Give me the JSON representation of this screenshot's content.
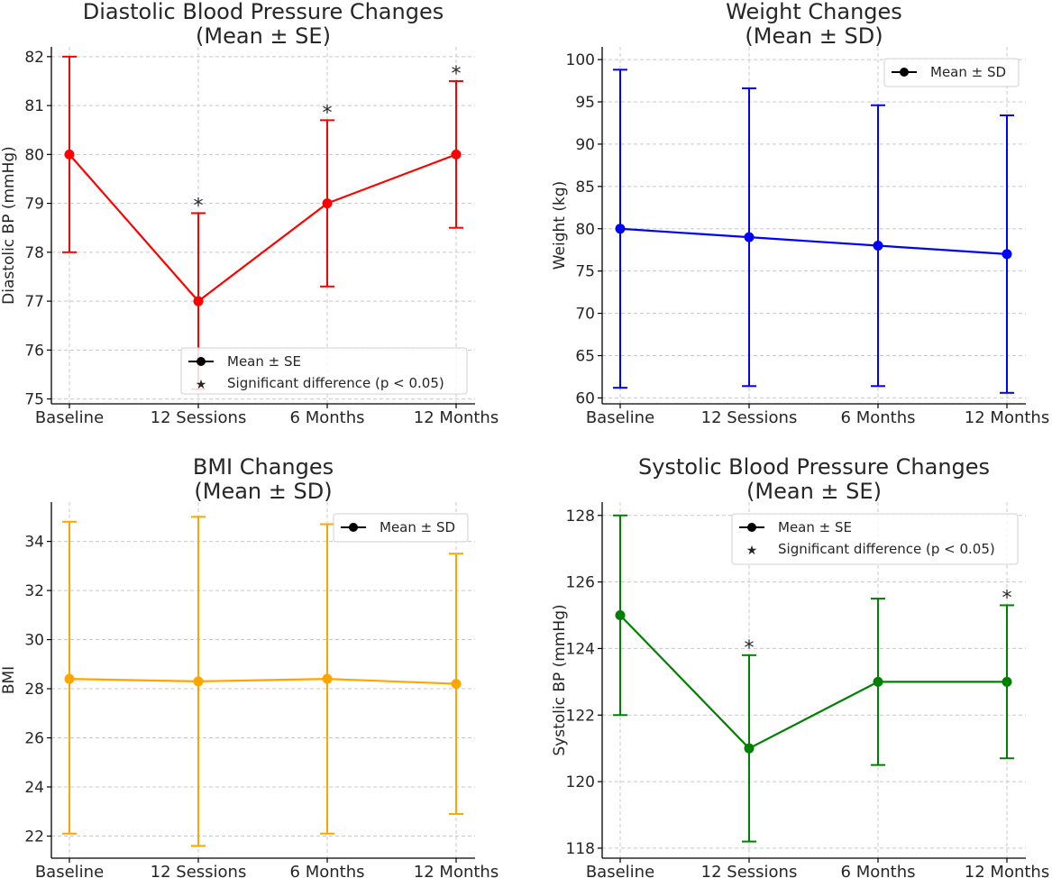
{
  "chart_data": [
    {
      "type": "line",
      "title": "Diastolic Blood Pressure Changes",
      "subtitle": "(Mean ± SE)",
      "xlabel": "",
      "ylabel": "Diastolic BP (mmHg)",
      "categories": [
        "Baseline",
        "12 Sessions",
        "6 Months",
        "12 Months"
      ],
      "ylim": [
        74.9,
        82.2
      ],
      "yticks": [
        75,
        76,
        77,
        78,
        79,
        80,
        81,
        82
      ],
      "color": "#ff0000",
      "series": [
        {
          "values": [
            80,
            77,
            79,
            80
          ],
          "err_low": [
            78,
            75.2,
            77.3,
            78.5
          ],
          "err_high": [
            82,
            78.8,
            80.7,
            81.5
          ]
        }
      ],
      "significance_marker": "*",
      "significant_points": [
        1,
        2,
        3
      ],
      "grid": true,
      "legend": {
        "placement": "lower-right",
        "entries": [
          {
            "marker": "line-dot",
            "label": "Mean ± SE"
          },
          {
            "marker": "star",
            "label": "Significant difference (p < 0.05)"
          }
        ]
      }
    },
    {
      "type": "line",
      "title": "Weight Changes",
      "subtitle": "(Mean ± SD)",
      "xlabel": "",
      "ylabel": "Weight (kg)",
      "categories": [
        "Baseline",
        "12 Sessions",
        "6 Months",
        "12 Months"
      ],
      "ylim": [
        59.3,
        101.5
      ],
      "yticks": [
        60,
        65,
        70,
        75,
        80,
        85,
        90,
        95,
        100
      ],
      "color": "#0000ff",
      "series": [
        {
          "values": [
            80,
            79,
            78,
            77
          ],
          "err_low": [
            61.2,
            61.4,
            61.4,
            60.6
          ],
          "err_high": [
            98.8,
            96.6,
            94.6,
            93.4
          ]
        }
      ],
      "significance_marker": "",
      "significant_points": [],
      "grid": true,
      "legend": {
        "placement": "top-right",
        "entries": [
          {
            "marker": "line-dot",
            "label": "Mean ± SD"
          }
        ]
      }
    },
    {
      "type": "line",
      "title": "BMI Changes",
      "subtitle": "(Mean ± SD)",
      "xlabel": "",
      "ylabel": "BMI",
      "categories": [
        "Baseline",
        "12 Sessions",
        "6 Months",
        "12 Months"
      ],
      "ylim": [
        21.1,
        35.6
      ],
      "yticks": [
        22,
        24,
        26,
        28,
        30,
        32,
        34
      ],
      "color": "#ffa500",
      "series": [
        {
          "values": [
            28.4,
            28.3,
            28.4,
            28.2
          ],
          "err_low": [
            22.1,
            21.6,
            22.1,
            22.9
          ],
          "err_high": [
            34.8,
            35,
            34.7,
            33.5
          ]
        }
      ],
      "significance_marker": "",
      "significant_points": [],
      "grid": true,
      "legend": {
        "placement": "top-right",
        "entries": [
          {
            "marker": "line-dot",
            "label": "Mean ± SD"
          }
        ]
      }
    },
    {
      "type": "line",
      "title": "Systolic Blood Pressure Changes",
      "subtitle": "(Mean ± SE)",
      "xlabel": "",
      "ylabel": "Systolic BP (mmHg)",
      "categories": [
        "Baseline",
        "12 Sessions",
        "6 Months",
        "12 Months"
      ],
      "ylim": [
        117.7,
        128.4
      ],
      "yticks": [
        118,
        120,
        122,
        124,
        126,
        128
      ],
      "color": "#008000",
      "series": [
        {
          "values": [
            125,
            121,
            123,
            123
          ],
          "err_low": [
            122,
            118.2,
            120.5,
            120.7
          ],
          "err_high": [
            128,
            123.8,
            125.5,
            125.3
          ]
        }
      ],
      "significance_marker": "*",
      "significant_points": [
        1,
        3
      ],
      "grid": true,
      "legend": {
        "placement": "top-right",
        "entries": [
          {
            "marker": "line-dot",
            "label": "Mean ± SE"
          },
          {
            "marker": "star",
            "label": "Significant difference (p < 0.05)"
          }
        ]
      }
    }
  ]
}
